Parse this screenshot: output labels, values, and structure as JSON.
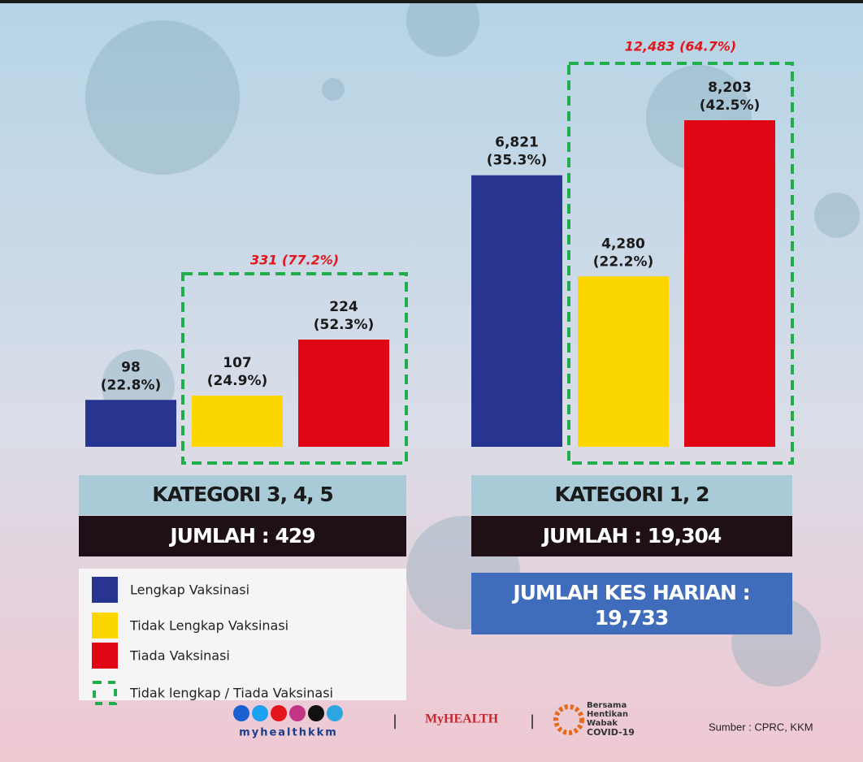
{
  "chart_data": [
    {
      "type": "bar",
      "title": "KATEGORI 3, 4, 5",
      "total_label": "JUMLAH : 429",
      "values": [
        98,
        107,
        224
      ],
      "value_labels": [
        "98",
        "107",
        "224"
      ],
      "percent_labels": [
        "(22.8%)",
        "(24.9%)",
        "(52.3%)"
      ],
      "bracket_annotation": "331 (77.2%)"
    },
    {
      "type": "bar",
      "title": "KATEGORI 1, 2",
      "total_label": "JUMLAH : 19,304",
      "values": [
        6821,
        4280,
        8203
      ],
      "value_labels": [
        "6,821",
        "4,280",
        "8,203"
      ],
      "percent_labels": [
        "(35.3%)",
        "(22.2%)",
        "(42.5%)"
      ],
      "bracket_annotation": "12,483 (64.7%)"
    }
  ],
  "legend": {
    "items": [
      {
        "label": "Lengkap Vaksinasi",
        "color": "#283590"
      },
      {
        "label": "Tidak Lengkap Vaksinasi",
        "color": "#fdd600"
      },
      {
        "label": "Tiada Vaksinasi",
        "color": "#e10613"
      }
    ],
    "bracket_label": "Tidak lengkap / Tiada Vaksinasi",
    "bracket_color": "#1fae4b"
  },
  "summary": {
    "lines": [
      "JUMLAH KES HARIAN :",
      "19,733"
    ]
  },
  "footer": {
    "handle": "myhealthkkm",
    "logo": "MyHEALTH",
    "campaign": [
      "Bersama",
      "Hentikan",
      "Wabak",
      "COVID-19"
    ],
    "source": "Sumber : CPRC, KKM"
  }
}
